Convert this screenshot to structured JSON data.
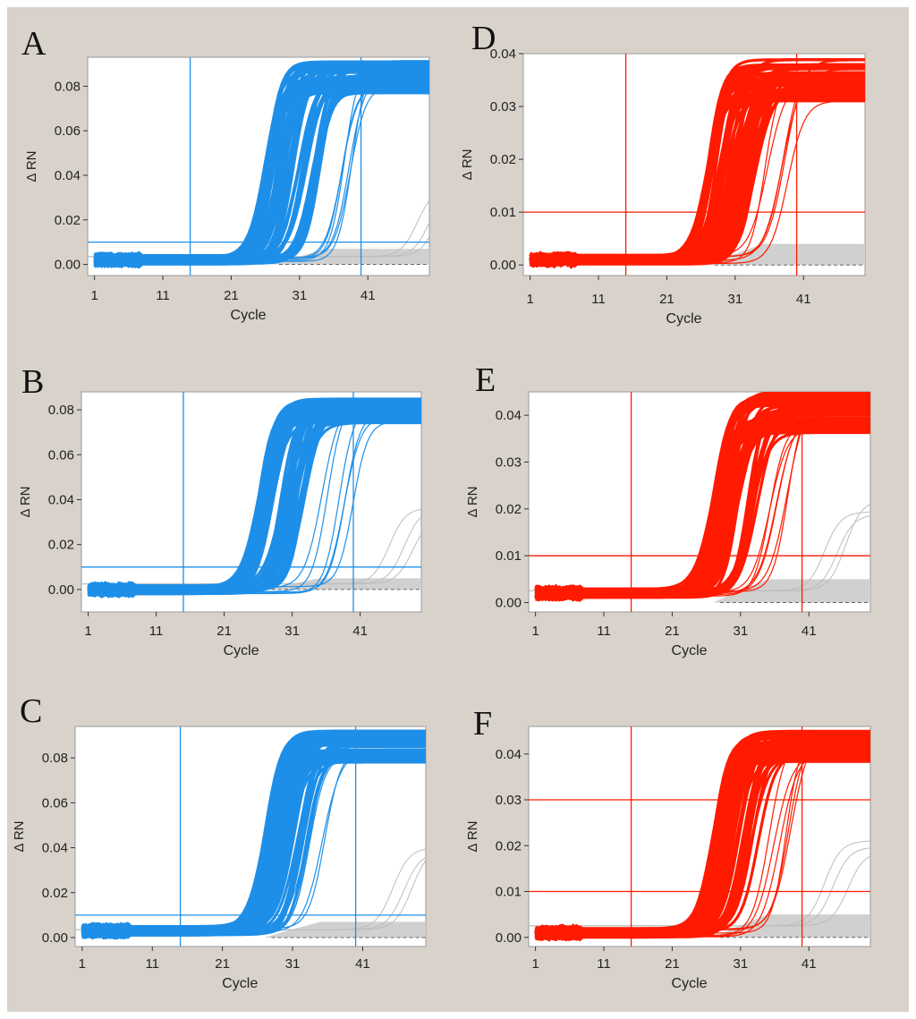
{
  "panels": [
    {
      "letter": "A",
      "color": "#1e8fe8"
    },
    {
      "letter": "D",
      "color": "#ff1a00"
    },
    {
      "letter": "B",
      "color": "#1e8fe8"
    },
    {
      "letter": "E",
      "color": "#ff1a00"
    },
    {
      "letter": "C",
      "color": "#1e8fe8"
    },
    {
      "letter": "F",
      "color": "#ff1a00"
    }
  ],
  "chart_data": [
    {
      "panel": "A",
      "type": "line",
      "xlabel": "Cycle",
      "ylabel": "Δ RN",
      "x_ticks": [
        1,
        11,
        21,
        31,
        41
      ],
      "y_ticks": [
        "0.00",
        "0.02",
        "0.04",
        "0.06",
        "0.08"
      ],
      "xlim": [
        0,
        50
      ],
      "ylim": [
        -0.005,
        0.093
      ],
      "threshold": 0.01,
      "cycle_markers": [
        15,
        40
      ],
      "curves": {
        "count": 70,
        "baseline": 0.002,
        "plateau": [
          0.077,
          0.092
        ],
        "ct_range": [
          26,
          34
        ],
        "late_ct": [
          37,
          39
        ]
      },
      "background_band": [
        0.0,
        0.007
      ],
      "background_late_rise": 48
    },
    {
      "panel": "D",
      "type": "line",
      "xlabel": "Cycle",
      "ylabel": "Δ RN",
      "x_ticks": [
        1,
        11,
        21,
        31,
        41
      ],
      "y_ticks": [
        "0.00",
        "0.01",
        "0.02",
        "0.03",
        "0.04"
      ],
      "xlim": [
        0,
        50
      ],
      "ylim": [
        -0.002,
        0.04
      ],
      "threshold": 0.01,
      "cycle_markers": [
        15,
        40
      ],
      "curves": {
        "count": 70,
        "baseline": 0.001,
        "plateau": [
          0.031,
          0.039
        ],
        "ct_range": [
          27,
          34
        ],
        "late_ct": [
          35,
          39
        ]
      },
      "background_band": [
        0.0,
        0.004
      ],
      "background_late_rise": null
    },
    {
      "panel": "B",
      "type": "line",
      "xlabel": "Cycle",
      "ylabel": "Δ RN",
      "x_ticks": [
        1,
        11,
        21,
        31,
        41
      ],
      "y_ticks": [
        "0.00",
        "0.02",
        "0.04",
        "0.06",
        "0.08"
      ],
      "xlim": [
        0,
        50
      ],
      "ylim": [
        -0.01,
        0.088
      ],
      "threshold": 0.01,
      "cycle_markers": [
        15,
        40
      ],
      "curves": {
        "count": 70,
        "baseline": 0.0,
        "plateau": [
          0.074,
          0.085
        ],
        "ct_range": [
          26,
          33
        ],
        "late_ct": [
          35,
          40
        ]
      },
      "background_band": [
        0.0,
        0.005
      ],
      "background_late_rise": 45
    },
    {
      "panel": "E",
      "type": "line",
      "xlabel": "Cycle",
      "ylabel": "Δ RN",
      "x_ticks": [
        1,
        11,
        21,
        31,
        41
      ],
      "y_ticks": [
        "0.00",
        "0.01",
        "0.02",
        "0.03",
        "0.04"
      ],
      "xlim": [
        0,
        50
      ],
      "ylim": [
        -0.002,
        0.045
      ],
      "threshold": 0.01,
      "cycle_markers": [
        15,
        40
      ],
      "curves": {
        "count": 70,
        "baseline": 0.002,
        "plateau": [
          0.036,
          0.045
        ],
        "ct_range": [
          27,
          34
        ],
        "late_ct": [
          35,
          39
        ]
      },
      "background_band": [
        0.0,
        0.005
      ],
      "background_late_rise": 43
    },
    {
      "panel": "C",
      "type": "line",
      "xlabel": "Cycle",
      "ylabel": "Δ RN",
      "x_ticks": [
        1,
        11,
        21,
        31,
        41
      ],
      "y_ticks": [
        "0.00",
        "0.02",
        "0.04",
        "0.06",
        "0.08"
      ],
      "xlim": [
        0,
        50
      ],
      "ylim": [
        -0.004,
        0.094
      ],
      "threshold": 0.01,
      "cycle_markers": [
        15,
        40
      ],
      "curves": {
        "count": 70,
        "baseline": 0.003,
        "plateau": [
          0.078,
          0.092
        ],
        "ct_range": [
          27,
          33
        ],
        "late_ct": [
          33,
          36
        ]
      },
      "background_band": [
        0.0,
        0.007
      ],
      "background_late_rise": 45
    },
    {
      "panel": "F",
      "type": "line",
      "xlabel": "Cycle",
      "ylabel": "Δ RN",
      "x_ticks": [
        1,
        11,
        21,
        31,
        41
      ],
      "y_ticks": [
        "0.00",
        "0.01",
        "0.02",
        "0.03",
        "0.04"
      ],
      "xlim": [
        0,
        50
      ],
      "ylim": [
        -0.002,
        0.046
      ],
      "threshold": 0.01,
      "threshold_upper": 0.03,
      "cycle_markers": [
        15,
        40
      ],
      "curves": {
        "count": 70,
        "baseline": 0.001,
        "plateau": [
          0.038,
          0.045
        ],
        "ct_range": [
          27,
          34
        ],
        "late_ct": [
          35,
          39
        ]
      },
      "background_band": [
        0.0,
        0.005
      ],
      "background_late_rise": 43
    }
  ]
}
